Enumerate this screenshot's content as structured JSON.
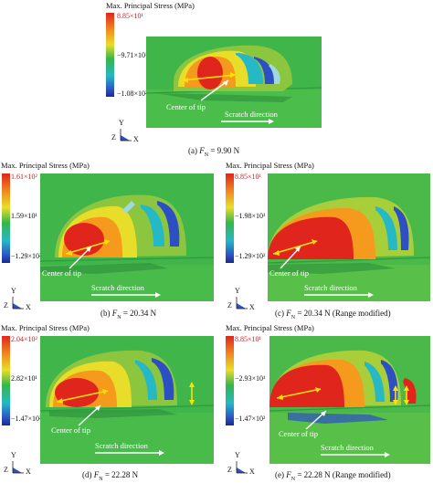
{
  "legend_title": "Max. Principal Stress (MPa)",
  "center_label": "Center of tip",
  "scratch_label": "Scratch direction",
  "axis_y": "Y",
  "axis_z": "Z",
  "axis_x": "X",
  "force_symbol": "F",
  "force_sub": "N",
  "colors": {
    "red": "#e0251c",
    "orange": "#f59a1d",
    "yellow": "#e8de2a",
    "green": "#35b64a",
    "cyan": "#26b8c4",
    "blue": "#2c4fc4",
    "navy": "#1a2a8c"
  },
  "panels": [
    {
      "id": "a",
      "tick_top": "8.85×10¹",
      "tick_mid": "−9.71×10¹",
      "tick_bot": "−1.08×10²",
      "cap_prefix": "(a) ",
      "cap_suffix": " = 9.90 N"
    },
    {
      "id": "b",
      "tick_top": "1.61×10²",
      "tick_mid": "1.59×10¹",
      "tick_bot": "−1.29×10²",
      "cap_prefix": "(b) ",
      "cap_suffix": " = 20.34 N"
    },
    {
      "id": "c",
      "tick_top": "8.85×10¹",
      "tick_mid": "−1.98×10¹",
      "tick_bot": "−1.29×10²",
      "cap_prefix": "(c) ",
      "cap_suffix": " = 20.34 N (Range modified)"
    },
    {
      "id": "d",
      "tick_top": "2.04×10²",
      "tick_mid": "2.82×10¹",
      "tick_bot": "−1.47×10²",
      "cap_prefix": "(d) ",
      "cap_suffix": " = 22.28 N"
    },
    {
      "id": "e",
      "tick_top": "8.85×10¹",
      "tick_mid": "−2.93×10¹",
      "tick_bot": "−1.47×10²",
      "cap_prefix": "(e) ",
      "cap_suffix": " = 22.28 N (Range modified)"
    }
  ]
}
